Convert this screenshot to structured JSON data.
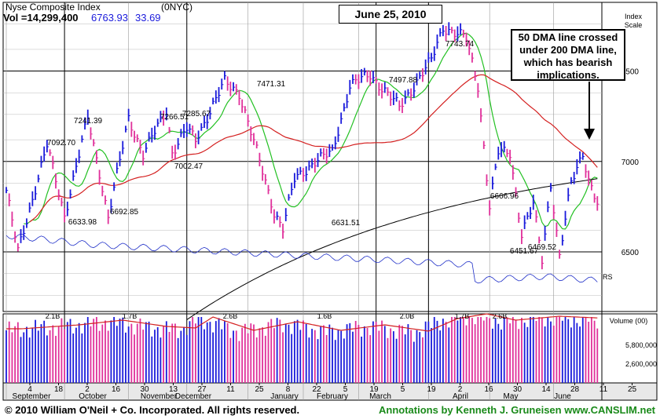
{
  "header": {
    "index_name": "Nyse Composite Index",
    "symbol": "(0NYC)",
    "vol_label": "Vol =14,299,400",
    "last_price": "6763.93",
    "change": "33.69"
  },
  "date_box": "June 25, 2010",
  "note_box": [
    "50 DMA line crossed",
    "under 200 DMA line,",
    "which has bearish",
    "implications."
  ],
  "footer": {
    "copyright": "© 2010 William O'Neil + Co. Incorporated. All rights reserved.",
    "annotations": "Annotations by Kenneth J. Gruneisen  www.CANSLIM.net"
  },
  "colors": {
    "up": "#1a1adb",
    "down": "#e0309a",
    "ma50": "#22c022",
    "ma200": "#000000",
    "ma_red": "#d42020",
    "rs": "#2030c8",
    "vol_avg": "#d42020"
  },
  "chart_data": {
    "type": "bar",
    "price_axis": {
      "title": [
        "Index",
        "Scale"
      ],
      "ticks": [
        6500,
        7000,
        7500
      ],
      "ylim": [
        6170,
        7880
      ]
    },
    "volume_axis": {
      "title": "Volume (00)",
      "ticks": [
        "5,800,000",
        "2,600,000"
      ]
    },
    "months": [
      "September",
      "October",
      "November",
      "December",
      "January",
      "February",
      "March",
      "April",
      "May",
      "June"
    ],
    "day_ticks": [
      "4",
      "18",
      "2",
      "16",
      "30",
      "13",
      "27",
      "11",
      "25",
      "8",
      "22",
      "5",
      "19",
      "5",
      "19",
      "2",
      "16",
      "30",
      "14",
      "28",
      "11",
      "25"
    ],
    "price_labels": [
      "7092.70",
      "6633.98",
      "7241.39",
      "6692.85",
      "7266.51",
      "7285.67",
      "7002.47",
      "7471.31",
      "6631.51",
      "7497.88",
      "7743.74",
      "6666.96",
      "6451.67",
      "6469.52"
    ],
    "volume_labels": [
      "2.1B",
      "1.7B",
      "2.6B",
      "1.6B",
      "2.0B",
      "1.7B",
      "2.6B"
    ],
    "rs_label": "RS",
    "price_waypoints": [
      [
        0,
        6840
      ],
      [
        4,
        6500
      ],
      [
        14,
        7090
      ],
      [
        20,
        6700
      ],
      [
        28,
        7240
      ],
      [
        32,
        6940
      ],
      [
        35,
        6690
      ],
      [
        42,
        7240
      ],
      [
        47,
        7040
      ],
      [
        55,
        7285
      ],
      [
        57,
        7050
      ],
      [
        62,
        7180
      ],
      [
        65,
        7120
      ],
      [
        75,
        7440
      ],
      [
        80,
        7380
      ],
      [
        87,
        7000
      ],
      [
        92,
        6720
      ],
      [
        95,
        6630
      ],
      [
        99,
        6900
      ],
      [
        106,
        7000
      ],
      [
        112,
        7050
      ],
      [
        118,
        7420
      ],
      [
        125,
        7480
      ],
      [
        135,
        7300
      ],
      [
        146,
        7560
      ],
      [
        150,
        7743
      ],
      [
        158,
        7680
      ],
      [
        162,
        7420
      ],
      [
        166,
        6750
      ],
      [
        169,
        7050
      ],
      [
        173,
        7050
      ],
      [
        177,
        6600
      ],
      [
        181,
        6760
      ],
      [
        184,
        6460
      ],
      [
        187,
        6880
      ],
      [
        190,
        6470
      ],
      [
        194,
        6880
      ],
      [
        198,
        7050
      ],
      [
        200,
        6900
      ],
      [
        203,
        6764
      ]
    ],
    "volume_waypoints": [
      [
        0,
        47
      ],
      [
        20,
        52
      ],
      [
        35,
        58
      ],
      [
        50,
        50
      ],
      [
        60,
        48
      ],
      [
        66,
        62
      ],
      [
        80,
        45
      ],
      [
        95,
        56
      ],
      [
        110,
        45
      ],
      [
        125,
        52
      ],
      [
        140,
        44
      ],
      [
        150,
        60
      ],
      [
        160,
        66
      ],
      [
        170,
        58
      ],
      [
        185,
        63
      ],
      [
        203,
        60
      ]
    ]
  }
}
